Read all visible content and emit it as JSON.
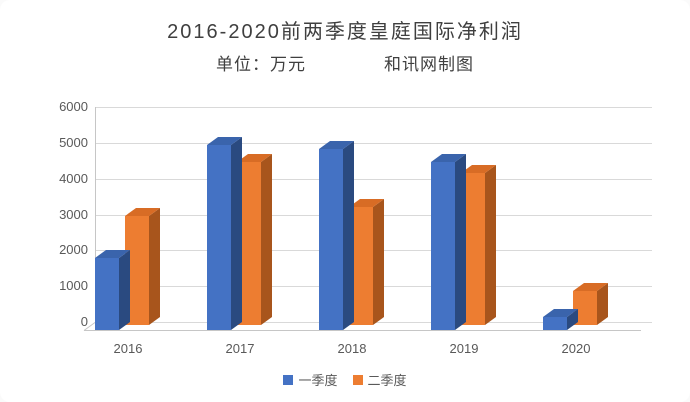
{
  "chart_data": {
    "type": "bar",
    "style": "3d-column",
    "title": "2016-2020前两季度皇庭国际净利润",
    "unit_label": "单位：万元",
    "source_label": "和讯网制图",
    "categories": [
      "2016",
      "2017",
      "2018",
      "2019",
      "2020"
    ],
    "series": [
      {
        "name": "一季度",
        "color": "#4472C4",
        "color_top": "#3a64ac",
        "color_side": "#2a4a80",
        "values": [
          2000,
          5150,
          5050,
          4700,
          350
        ]
      },
      {
        "name": "二季度",
        "color": "#ED7D31",
        "color_top": "#d86c25",
        "color_side": "#a8551c",
        "values": [
          3050,
          4550,
          3300,
          4250,
          950
        ]
      }
    ],
    "xlabel": "",
    "ylabel": "",
    "ylim": [
      0,
      6000
    ],
    "ytick_step": 1000,
    "grid": "horizontal",
    "legend_position": "bottom"
  }
}
